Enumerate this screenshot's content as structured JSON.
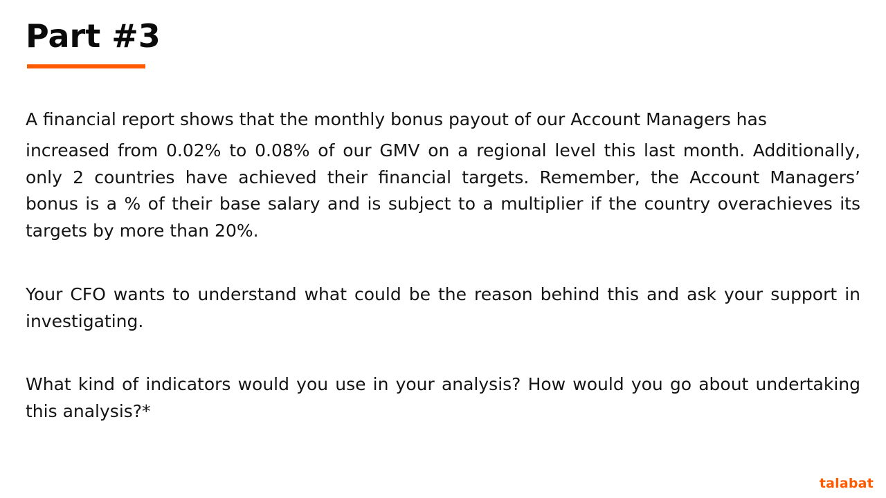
{
  "slide": {
    "title": "Part #3",
    "paragraphs": {
      "p1_line1": "A financial report shows that the monthly bonus payout of our Account Managers has",
      "p1_rest": "increased from 0.02% to 0.08% of our GMV on a regional level this last month. Additionally, only 2 countries have achieved their financial targets. Remember, the Account Managers’ bonus is a % of their base salary and is subject to a multiplier if the country overachieves its targets by more than 20%.",
      "p2": "Your CFO wants to understand what could be the reason behind this and ask your support in investigating.",
      "p3": "What kind of indicators would you use in your analysis? How would you go about undertaking this analysis?*"
    },
    "logo_text": "talabat"
  },
  "colors": {
    "accent": "#ff5a00",
    "text": "#141414",
    "background": "#ffffff"
  }
}
